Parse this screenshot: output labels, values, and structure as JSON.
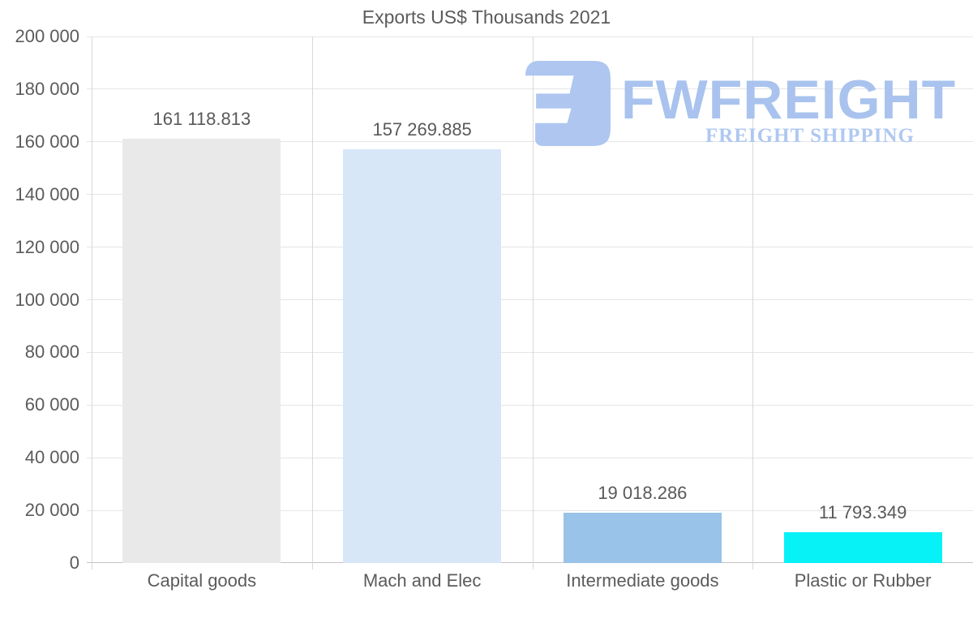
{
  "chart_data": {
    "type": "bar",
    "title": "Exports US$ Thousands 2021",
    "categories": [
      "Capital goods",
      "Mach and Elec",
      "Intermediate goods",
      "Plastic or Rubber"
    ],
    "values": [
      161118.813,
      157269.885,
      19018.286,
      11793.349
    ],
    "value_labels": [
      "161 118.813",
      "157 269.885",
      "19 018.286",
      "11 793.349"
    ],
    "bar_colors": [
      "#e9e9e9",
      "#d7e7f8",
      "#99c3e8",
      "#06f2f7"
    ],
    "xlabel": "",
    "ylabel": "",
    "ylim": [
      0,
      200000
    ],
    "ytick_step": 20000,
    "ytick_labels": [
      "0",
      "20 000",
      "40 000",
      "60 000",
      "80 000",
      "100 000",
      "120 000",
      "140 000",
      "160 000",
      "180 000",
      "200 000"
    ],
    "grid": true,
    "legend": "none"
  },
  "watermark": {
    "brand": "FWFREIGHT",
    "tagline": "FREIGHT SHIPPING",
    "icon": "fwfreight-logo-mark",
    "icon_color": "#aec6f0",
    "brand_color": "#a9c3ee",
    "tagline_color": "#afc8f1"
  },
  "colors": {
    "background": "#ffffff",
    "text": "#5b5b5b",
    "gridline": "#e5e5e5",
    "axis_line": "#c3c3c3",
    "column_separator": "#d8d8d8"
  }
}
